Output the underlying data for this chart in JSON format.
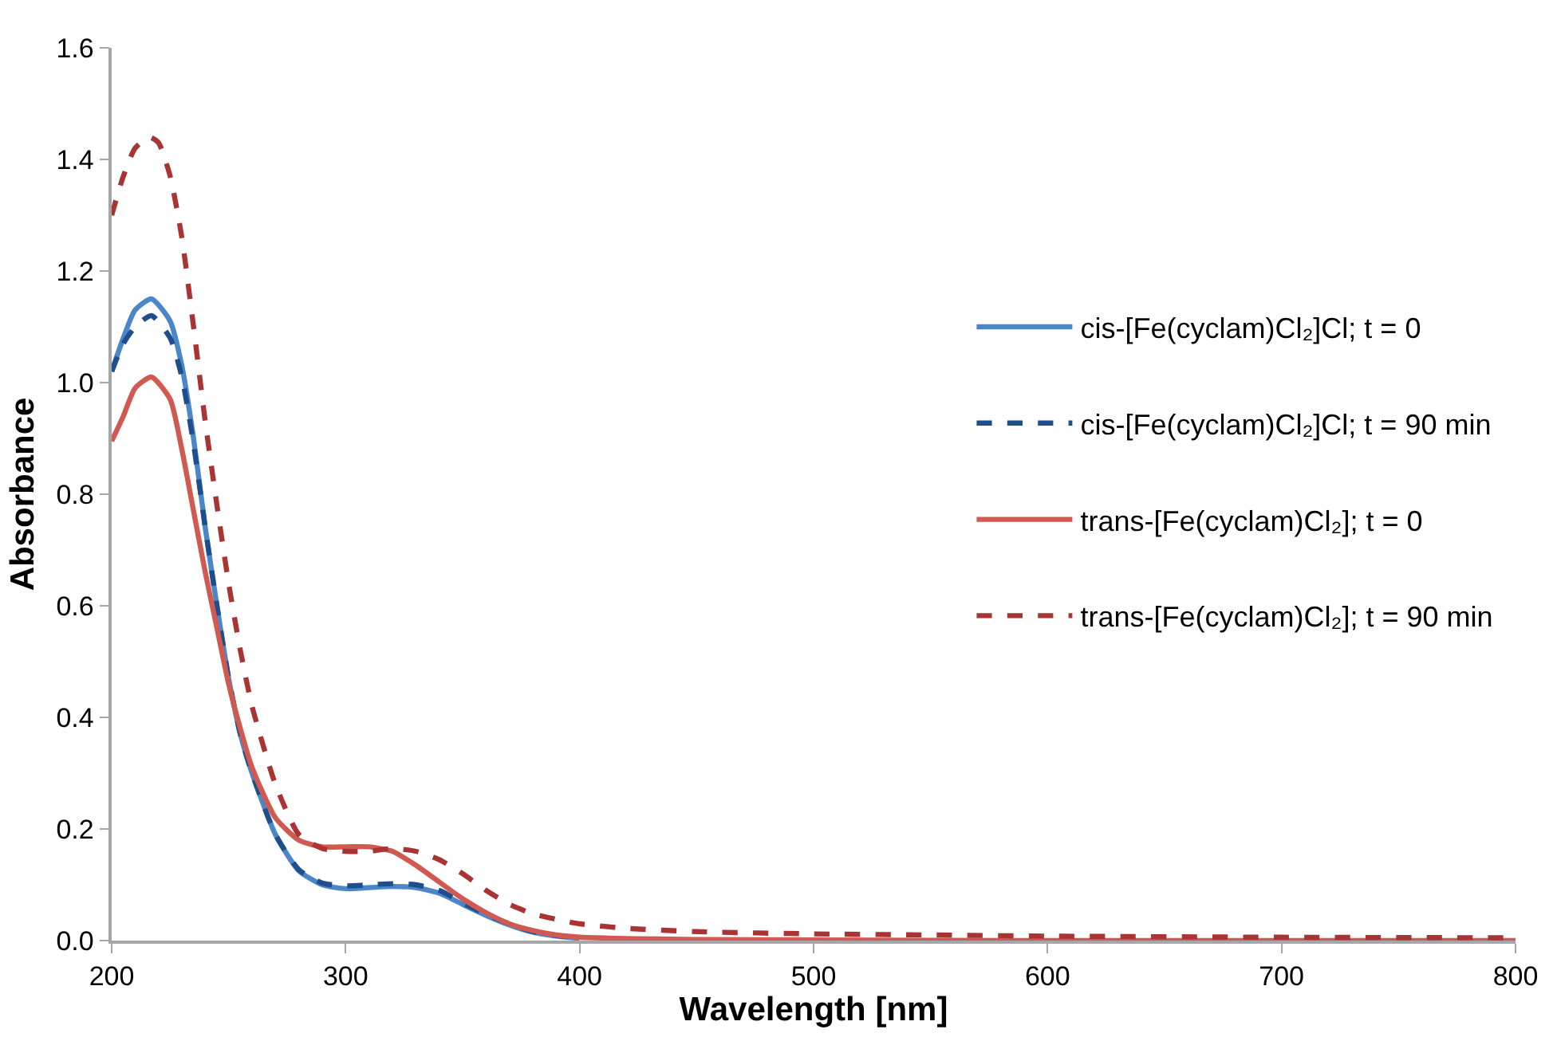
{
  "chart_data": {
    "type": "line",
    "xlabel": "Wavelength [nm]",
    "ylabel": "Absorbance",
    "xlim": [
      200,
      800
    ],
    "xticks": [
      200,
      300,
      400,
      500,
      600,
      700,
      800
    ],
    "ylim": [
      0,
      1.6
    ],
    "yticks": [
      {
        "value": 0,
        "label": "0.0"
      },
      0.2,
      0.4,
      0.6,
      0.8,
      {
        "value": 1,
        "label": "1.0"
      },
      1.2,
      1.4,
      1.6
    ],
    "legend": "right",
    "marker": "none",
    "series": [
      {
        "name": "cis-[Fe(cyclam)Cl₂]Cl; t = 0",
        "color": "#4a86c8",
        "line_style": "solid",
        "x": [
          200,
          205,
          210,
          217,
          225,
          230,
          235,
          240,
          245,
          250,
          255,
          260,
          270,
          280,
          290,
          300,
          310,
          320,
          330,
          340,
          350,
          360,
          370,
          380,
          390,
          400
        ],
        "values": [
          1.02,
          1.08,
          1.13,
          1.15,
          1.11,
          1.03,
          0.9,
          0.74,
          0.6,
          0.47,
          0.37,
          0.3,
          0.19,
          0.125,
          0.1,
          0.093,
          0.095,
          0.097,
          0.095,
          0.085,
          0.065,
          0.045,
          0.028,
          0.015,
          0.008,
          0.004
        ]
      },
      {
        "name": "cis-[Fe(cyclam)Cl₂]Cl; t = 90 min",
        "color": "#1f4e8c",
        "line_style": "dashed",
        "x": [
          200,
          205,
          210,
          217,
          225,
          230,
          235,
          240,
          245,
          250,
          255,
          260,
          270,
          280,
          290,
          300,
          310,
          320,
          330,
          340,
          350,
          360,
          370,
          380,
          390,
          400
        ],
        "values": [
          1.02,
          1.07,
          1.1,
          1.12,
          1.08,
          1.01,
          0.89,
          0.74,
          0.6,
          0.47,
          0.37,
          0.3,
          0.19,
          0.127,
          0.103,
          0.098,
          0.1,
          0.102,
          0.1,
          0.09,
          0.068,
          0.047,
          0.03,
          0.016,
          0.009,
          0.005
        ]
      },
      {
        "name": "trans-[Fe(cyclam)Cl₂]; t = 0",
        "color": "#d05a52",
        "line_style": "solid",
        "x": [
          200,
          205,
          210,
          217,
          225,
          230,
          235,
          240,
          245,
          250,
          255,
          260,
          270,
          280,
          290,
          300,
          310,
          320,
          330,
          340,
          350,
          360,
          370,
          380,
          390,
          400,
          450,
          500,
          600,
          700,
          800
        ],
        "values": [
          0.895,
          0.94,
          0.99,
          1.01,
          0.97,
          0.88,
          0.77,
          0.66,
          0.56,
          0.46,
          0.38,
          0.31,
          0.22,
          0.18,
          0.168,
          0.168,
          0.168,
          0.16,
          0.135,
          0.105,
          0.075,
          0.05,
          0.03,
          0.018,
          0.01,
          0.006,
          0.002,
          0.001,
          0,
          0,
          0
        ]
      },
      {
        "name": "trans-[Fe(cyclam)Cl₂]; t = 90 min",
        "color": "#a93434",
        "line_style": "dashed",
        "x": [
          200,
          205,
          210,
          216,
          220,
          225,
          230,
          235,
          240,
          245,
          250,
          255,
          260,
          270,
          280,
          290,
          300,
          310,
          320,
          330,
          340,
          350,
          360,
          370,
          380,
          390,
          400,
          420,
          450,
          500,
          550,
          600,
          700,
          800
        ],
        "values": [
          1.3,
          1.37,
          1.42,
          1.44,
          1.43,
          1.37,
          1.26,
          1.1,
          0.93,
          0.78,
          0.64,
          0.52,
          0.42,
          0.28,
          0.19,
          0.165,
          0.16,
          0.16,
          0.165,
          0.16,
          0.145,
          0.12,
          0.09,
          0.065,
          0.048,
          0.038,
          0.03,
          0.022,
          0.016,
          0.012,
          0.01,
          0.008,
          0.006,
          0.005
        ]
      }
    ]
  }
}
